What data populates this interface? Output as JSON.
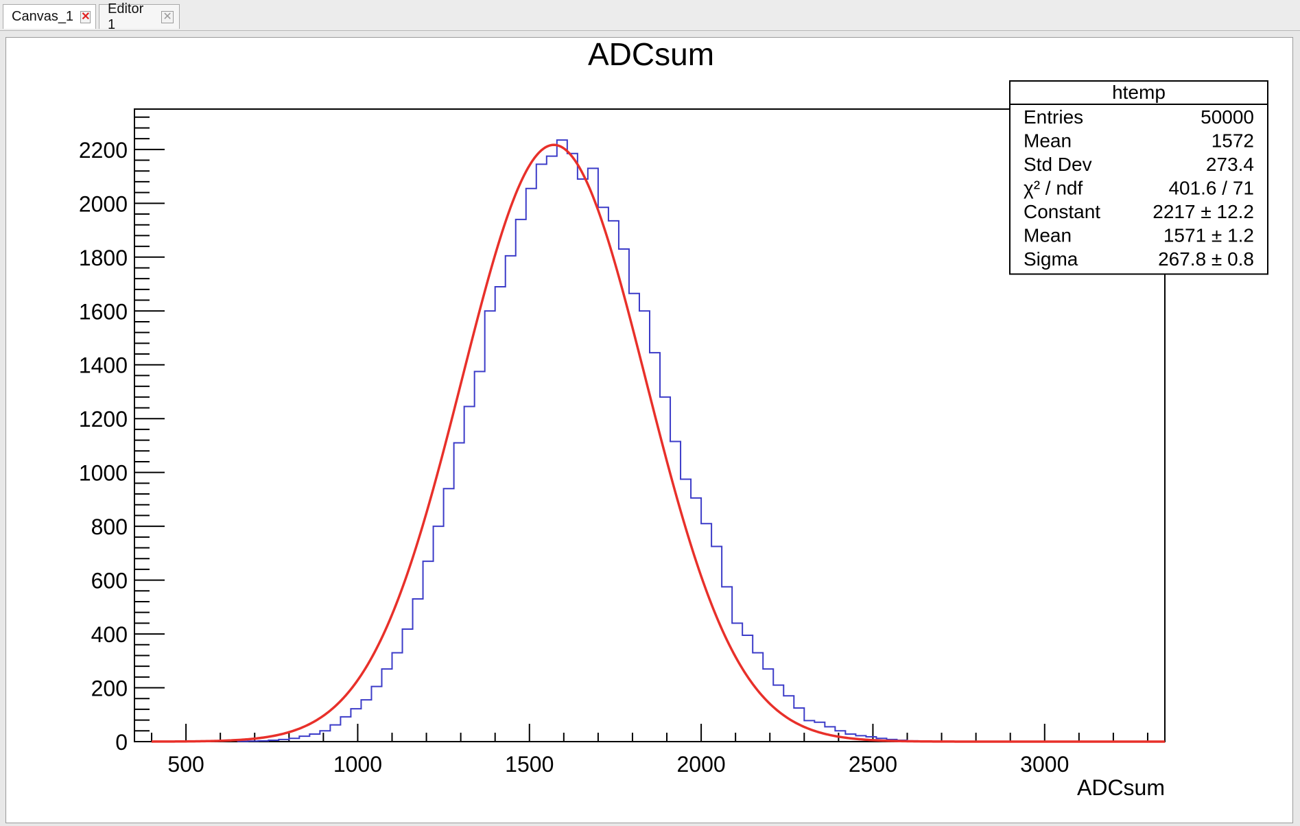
{
  "tabs": [
    {
      "label": "Canvas_1",
      "close_icon": "red-x-icon",
      "active": true
    },
    {
      "label": "Editor 1",
      "close_icon": "grey-x-icon",
      "active": false
    }
  ],
  "colors": {
    "histogram": "#3b3bc8",
    "fit": "#e8302a",
    "frame": "#000000"
  },
  "chart_data": {
    "type": "histogram",
    "title": "ADCsum",
    "xlabel": "ADCsum",
    "ylabel": "",
    "xlim": [
      350,
      3350
    ],
    "ylim": [
      0,
      2350
    ],
    "xticks": [
      500,
      1000,
      1500,
      2000,
      2500,
      3000
    ],
    "yticks": [
      0,
      200,
      400,
      600,
      800,
      1000,
      1200,
      1400,
      1600,
      1800,
      2000,
      2200
    ],
    "bin_width": 30,
    "bins_start": 650,
    "series": [
      {
        "kind": "step",
        "values": [
          1,
          2,
          3,
          5,
          8,
          12,
          20,
          28,
          40,
          62,
          92,
          122,
          155,
          205,
          270,
          330,
          418,
          530,
          670,
          800,
          940,
          1110,
          1245,
          1375,
          1600,
          1690,
          1805,
          1940,
          2055,
          2145,
          2175,
          2235,
          2185,
          2090,
          2130,
          1985,
          1935,
          1830,
          1665,
          1600,
          1445,
          1280,
          1115,
          975,
          905,
          810,
          725,
          575,
          440,
          395,
          330,
          270,
          210,
          170,
          125,
          78,
          72,
          55,
          40,
          28,
          22,
          18,
          12,
          8,
          5,
          3,
          2,
          1
        ]
      },
      {
        "kind": "gaussian-fit",
        "constant": 2217,
        "mean": 1571,
        "sigma": 267.8
      }
    ],
    "stats_box": {
      "title": "htemp",
      "rows": [
        {
          "label": "Entries",
          "value": "50000"
        },
        {
          "label": "Mean",
          "value": "1572"
        },
        {
          "label": "Std Dev",
          "value": "273.4"
        },
        {
          "label": "χ² / ndf",
          "value": "401.6 / 71"
        },
        {
          "label": "Constant",
          "value": "2217 ± 12.2"
        },
        {
          "label": "Mean",
          "value": "1571 ± 1.2"
        },
        {
          "label": "Sigma",
          "value": "267.8 ± 0.8"
        }
      ]
    },
    "grid": false,
    "legend": "top-right"
  }
}
